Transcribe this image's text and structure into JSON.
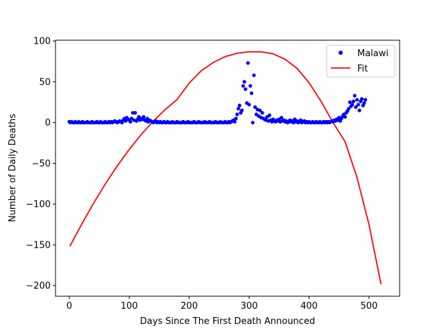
{
  "chart_data": {
    "type": "scatter",
    "title": "",
    "xlabel": "Days Since The First Death Announced",
    "ylabel": "Number of Daily Deaths",
    "xlim": [
      -23,
      551
    ],
    "ylim": [
      -213,
      101
    ],
    "x_ticks": [
      0,
      100,
      200,
      300,
      400,
      500
    ],
    "y_ticks": [
      100,
      50,
      0,
      -50,
      -100,
      -150,
      -200
    ],
    "grid": false,
    "legend_position": "top-right",
    "series": [
      {
        "name": "Malawi",
        "kind": "points",
        "color": "#0000ff",
        "points": [
          [
            0,
            1
          ],
          [
            2,
            0
          ],
          [
            4,
            1
          ],
          [
            6,
            0
          ],
          [
            8,
            0
          ],
          [
            10,
            1
          ],
          [
            12,
            0
          ],
          [
            14,
            0
          ],
          [
            16,
            1
          ],
          [
            18,
            0
          ],
          [
            20,
            0
          ],
          [
            22,
            1
          ],
          [
            24,
            0
          ],
          [
            26,
            0
          ],
          [
            28,
            0
          ],
          [
            30,
            1
          ],
          [
            32,
            0
          ],
          [
            34,
            0
          ],
          [
            36,
            0
          ],
          [
            38,
            1
          ],
          [
            40,
            0
          ],
          [
            42,
            0
          ],
          [
            44,
            0
          ],
          [
            46,
            1
          ],
          [
            48,
            0
          ],
          [
            50,
            0
          ],
          [
            52,
            1
          ],
          [
            54,
            0
          ],
          [
            56,
            0
          ],
          [
            58,
            0
          ],
          [
            60,
            1
          ],
          [
            62,
            0
          ],
          [
            64,
            0
          ],
          [
            66,
            1
          ],
          [
            68,
            0
          ],
          [
            70,
            1
          ],
          [
            72,
            0
          ],
          [
            74,
            1
          ],
          [
            76,
            2
          ],
          [
            78,
            1
          ],
          [
            80,
            0
          ],
          [
            82,
            1
          ],
          [
            84,
            2
          ],
          [
            86,
            1
          ],
          [
            88,
            0
          ],
          [
            90,
            3
          ],
          [
            92,
            5
          ],
          [
            94,
            2
          ],
          [
            96,
            6
          ],
          [
            98,
            4
          ],
          [
            100,
            3
          ],
          [
            102,
            1
          ],
          [
            104,
            5
          ],
          [
            106,
            12
          ],
          [
            108,
            3
          ],
          [
            110,
            12
          ],
          [
            112,
            2
          ],
          [
            114,
            4
          ],
          [
            116,
            7
          ],
          [
            118,
            3
          ],
          [
            120,
            5
          ],
          [
            122,
            4
          ],
          [
            124,
            7
          ],
          [
            126,
            3
          ],
          [
            128,
            2
          ],
          [
            130,
            5
          ],
          [
            132,
            1
          ],
          [
            134,
            3
          ],
          [
            136,
            2
          ],
          [
            138,
            1
          ],
          [
            140,
            0
          ],
          [
            142,
            1
          ],
          [
            144,
            2
          ],
          [
            146,
            0
          ],
          [
            148,
            1
          ],
          [
            150,
            0
          ],
          [
            152,
            1
          ],
          [
            154,
            0
          ],
          [
            156,
            0
          ],
          [
            158,
            1
          ],
          [
            160,
            0
          ],
          [
            162,
            0
          ],
          [
            164,
            1
          ],
          [
            166,
            0
          ],
          [
            168,
            0
          ],
          [
            170,
            0
          ],
          [
            172,
            1
          ],
          [
            174,
            0
          ],
          [
            176,
            0
          ],
          [
            178,
            0
          ],
          [
            180,
            1
          ],
          [
            182,
            0
          ],
          [
            184,
            0
          ],
          [
            186,
            0
          ],
          [
            188,
            0
          ],
          [
            190,
            1
          ],
          [
            192,
            0
          ],
          [
            194,
            0
          ],
          [
            196,
            0
          ],
          [
            198,
            1
          ],
          [
            200,
            0
          ],
          [
            202,
            0
          ],
          [
            204,
            0
          ],
          [
            206,
            0
          ],
          [
            208,
            1
          ],
          [
            210,
            0
          ],
          [
            212,
            0
          ],
          [
            214,
            0
          ],
          [
            216,
            1
          ],
          [
            218,
            0
          ],
          [
            220,
            0
          ],
          [
            222,
            0
          ],
          [
            224,
            0
          ],
          [
            226,
            1
          ],
          [
            228,
            0
          ],
          [
            230,
            0
          ],
          [
            232,
            0
          ],
          [
            234,
            1
          ],
          [
            236,
            0
          ],
          [
            238,
            0
          ],
          [
            240,
            0
          ],
          [
            242,
            0
          ],
          [
            244,
            1
          ],
          [
            246,
            0
          ],
          [
            248,
            0
          ],
          [
            250,
            0
          ],
          [
            252,
            1
          ],
          [
            254,
            0
          ],
          [
            256,
            0
          ],
          [
            258,
            0
          ],
          [
            260,
            1
          ],
          [
            262,
            0
          ],
          [
            264,
            0
          ],
          [
            266,
            1
          ],
          [
            268,
            0
          ],
          [
            270,
            1
          ],
          [
            272,
            2
          ],
          [
            274,
            3
          ],
          [
            276,
            1
          ],
          [
            278,
            5
          ],
          [
            280,
            10
          ],
          [
            282,
            17
          ],
          [
            284,
            21
          ],
          [
            286,
            12
          ],
          [
            288,
            15
          ],
          [
            290,
            45
          ],
          [
            292,
            50
          ],
          [
            294,
            41
          ],
          [
            296,
            24
          ],
          [
            298,
            73
          ],
          [
            300,
            22
          ],
          [
            302,
            45
          ],
          [
            304,
            36
          ],
          [
            306,
            0
          ],
          [
            308,
            58
          ],
          [
            310,
            19
          ],
          [
            312,
            10
          ],
          [
            314,
            16
          ],
          [
            316,
            8
          ],
          [
            318,
            15
          ],
          [
            320,
            6
          ],
          [
            322,
            12
          ],
          [
            324,
            5
          ],
          [
            326,
            4
          ],
          [
            328,
            3
          ],
          [
            330,
            7
          ],
          [
            332,
            2
          ],
          [
            334,
            9
          ],
          [
            336,
            3
          ],
          [
            338,
            1
          ],
          [
            340,
            4
          ],
          [
            342,
            2
          ],
          [
            344,
            1
          ],
          [
            346,
            3
          ],
          [
            348,
            2
          ],
          [
            350,
            4
          ],
          [
            352,
            1
          ],
          [
            354,
            6
          ],
          [
            356,
            2
          ],
          [
            358,
            3
          ],
          [
            360,
            1
          ],
          [
            362,
            2
          ],
          [
            364,
            0
          ],
          [
            366,
            1
          ],
          [
            368,
            3
          ],
          [
            370,
            1
          ],
          [
            372,
            2
          ],
          [
            374,
            0
          ],
          [
            376,
            4
          ],
          [
            378,
            1
          ],
          [
            380,
            2
          ],
          [
            382,
            0
          ],
          [
            384,
            1
          ],
          [
            386,
            3
          ],
          [
            388,
            0
          ],
          [
            390,
            1
          ],
          [
            392,
            2
          ],
          [
            394,
            0
          ],
          [
            396,
            1
          ],
          [
            398,
            0
          ],
          [
            400,
            1
          ],
          [
            402,
            0
          ],
          [
            404,
            0
          ],
          [
            406,
            1
          ],
          [
            408,
            0
          ],
          [
            410,
            0
          ],
          [
            412,
            1
          ],
          [
            414,
            0
          ],
          [
            416,
            0
          ],
          [
            418,
            1
          ],
          [
            420,
            0
          ],
          [
            422,
            0
          ],
          [
            424,
            1
          ],
          [
            426,
            0
          ],
          [
            428,
            1
          ],
          [
            430,
            0
          ],
          [
            432,
            1
          ],
          [
            434,
            0
          ],
          [
            436,
            1
          ],
          [
            438,
            2
          ],
          [
            440,
            1
          ],
          [
            442,
            3
          ],
          [
            444,
            2
          ],
          [
            446,
            4
          ],
          [
            448,
            3
          ],
          [
            450,
            6
          ],
          [
            452,
            2
          ],
          [
            454,
            5
          ],
          [
            456,
            8
          ],
          [
            458,
            10
          ],
          [
            460,
            7
          ],
          [
            462,
            12
          ],
          [
            464,
            14
          ],
          [
            466,
            17
          ],
          [
            468,
            25
          ],
          [
            470,
            20
          ],
          [
            472,
            22
          ],
          [
            474,
            26
          ],
          [
            476,
            33
          ],
          [
            478,
            19
          ],
          [
            480,
            28
          ],
          [
            482,
            22
          ],
          [
            484,
            15
          ],
          [
            486,
            26
          ],
          [
            488,
            29
          ],
          [
            490,
            21
          ],
          [
            492,
            24
          ],
          [
            494,
            28
          ]
        ]
      },
      {
        "name": "Fit",
        "kind": "line",
        "color": "#ff0000",
        "points": [
          [
            1,
            -151.7
          ],
          [
            20,
            -125.5
          ],
          [
            40,
            -99.6
          ],
          [
            60,
            -75.4
          ],
          [
            80,
            -53.2
          ],
          [
            100,
            -32.9
          ],
          [
            120,
            -14.6
          ],
          [
            140,
            1.7
          ],
          [
            160,
            16.0
          ],
          [
            180,
            28.4
          ],
          [
            200,
            48.5
          ],
          [
            220,
            63.5
          ],
          [
            240,
            73.7
          ],
          [
            260,
            80.9
          ],
          [
            280,
            85.1
          ],
          [
            300,
            86.9
          ],
          [
            320,
            86.8
          ],
          [
            340,
            84.3
          ],
          [
            360,
            77.7
          ],
          [
            380,
            66.4
          ],
          [
            400,
            48.8
          ],
          [
            420,
            26.0
          ],
          [
            440,
            0.0
          ],
          [
            460,
            -23.5
          ],
          [
            480,
            -67.3
          ],
          [
            500,
            -125.1
          ],
          [
            520,
            -198.3
          ]
        ]
      }
    ]
  }
}
